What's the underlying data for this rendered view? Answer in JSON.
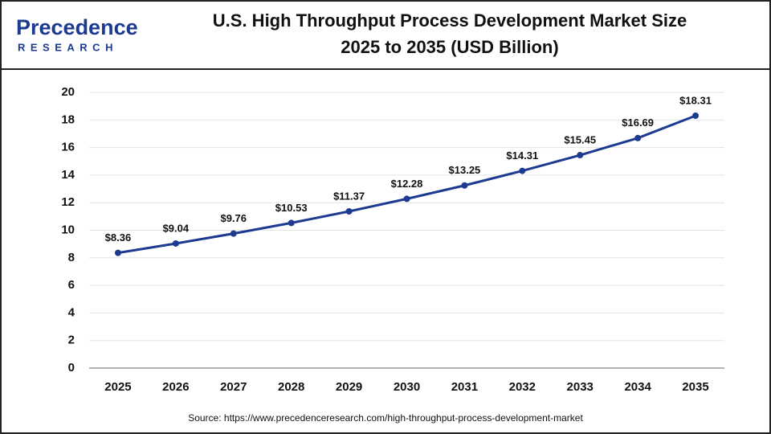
{
  "logo": {
    "name": "Precedence",
    "sub": "RESEARCH"
  },
  "chart_data": {
    "type": "line",
    "title": [
      "U.S. High Throughput Process Development Market Size",
      "2025 to 2035 (USD Billion)"
    ],
    "categories": [
      "2025",
      "2026",
      "2027",
      "2028",
      "2029",
      "2030",
      "2031",
      "2032",
      "2033",
      "2034",
      "2035"
    ],
    "values": [
      8.36,
      9.04,
      9.76,
      10.53,
      11.37,
      12.28,
      13.25,
      14.31,
      15.45,
      16.69,
      18.31
    ],
    "value_labels": [
      "$8.36",
      "$9.04",
      "$9.76",
      "$10.53",
      "$11.37",
      "$12.28",
      "$13.25",
      "$14.31",
      "$15.45",
      "$16.69",
      "$18.31"
    ],
    "color": "#1c3a8f",
    "ylim": [
      0,
      20
    ],
    "yticks": [
      0,
      2,
      4,
      6,
      8,
      10,
      12,
      14,
      16,
      18,
      20
    ],
    "grid": true,
    "source": "Source: https://www.precedenceresearch.com/high-throughput-process-development-market"
  }
}
